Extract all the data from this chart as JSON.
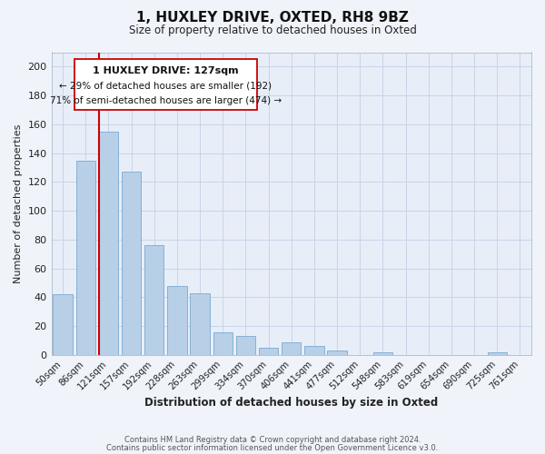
{
  "title": "1, HUXLEY DRIVE, OXTED, RH8 9BZ",
  "subtitle": "Size of property relative to detached houses in Oxted",
  "xlabel": "Distribution of detached houses by size in Oxted",
  "ylabel": "Number of detached properties",
  "categories": [
    "50sqm",
    "86sqm",
    "121sqm",
    "157sqm",
    "192sqm",
    "228sqm",
    "263sqm",
    "299sqm",
    "334sqm",
    "370sqm",
    "406sqm",
    "441sqm",
    "477sqm",
    "512sqm",
    "548sqm",
    "583sqm",
    "619sqm",
    "654sqm",
    "690sqm",
    "725sqm",
    "761sqm"
  ],
  "values": [
    42,
    135,
    155,
    127,
    76,
    48,
    43,
    16,
    13,
    5,
    9,
    6,
    3,
    0,
    2,
    0,
    0,
    0,
    0,
    2,
    0
  ],
  "bar_color": "#b8cfe8",
  "bar_edge_color": "#7aaad0",
  "marker_color": "#cc0000",
  "marker_index": 2,
  "ylim": [
    0,
    210
  ],
  "yticks": [
    0,
    20,
    40,
    60,
    80,
    100,
    120,
    140,
    160,
    180,
    200
  ],
  "annotation_title": "1 HUXLEY DRIVE: 127sqm",
  "annotation_line1": "← 29% of detached houses are smaller (192)",
  "annotation_line2": "71% of semi-detached houses are larger (474) →",
  "footer_line1": "Contains HM Land Registry data © Crown copyright and database right 2024.",
  "footer_line2": "Contains public sector information licensed under the Open Government Licence v3.0.",
  "background_color": "#f0f4fa",
  "plot_bg_color": "#e8eef8",
  "grid_color": "#c8d4e8"
}
